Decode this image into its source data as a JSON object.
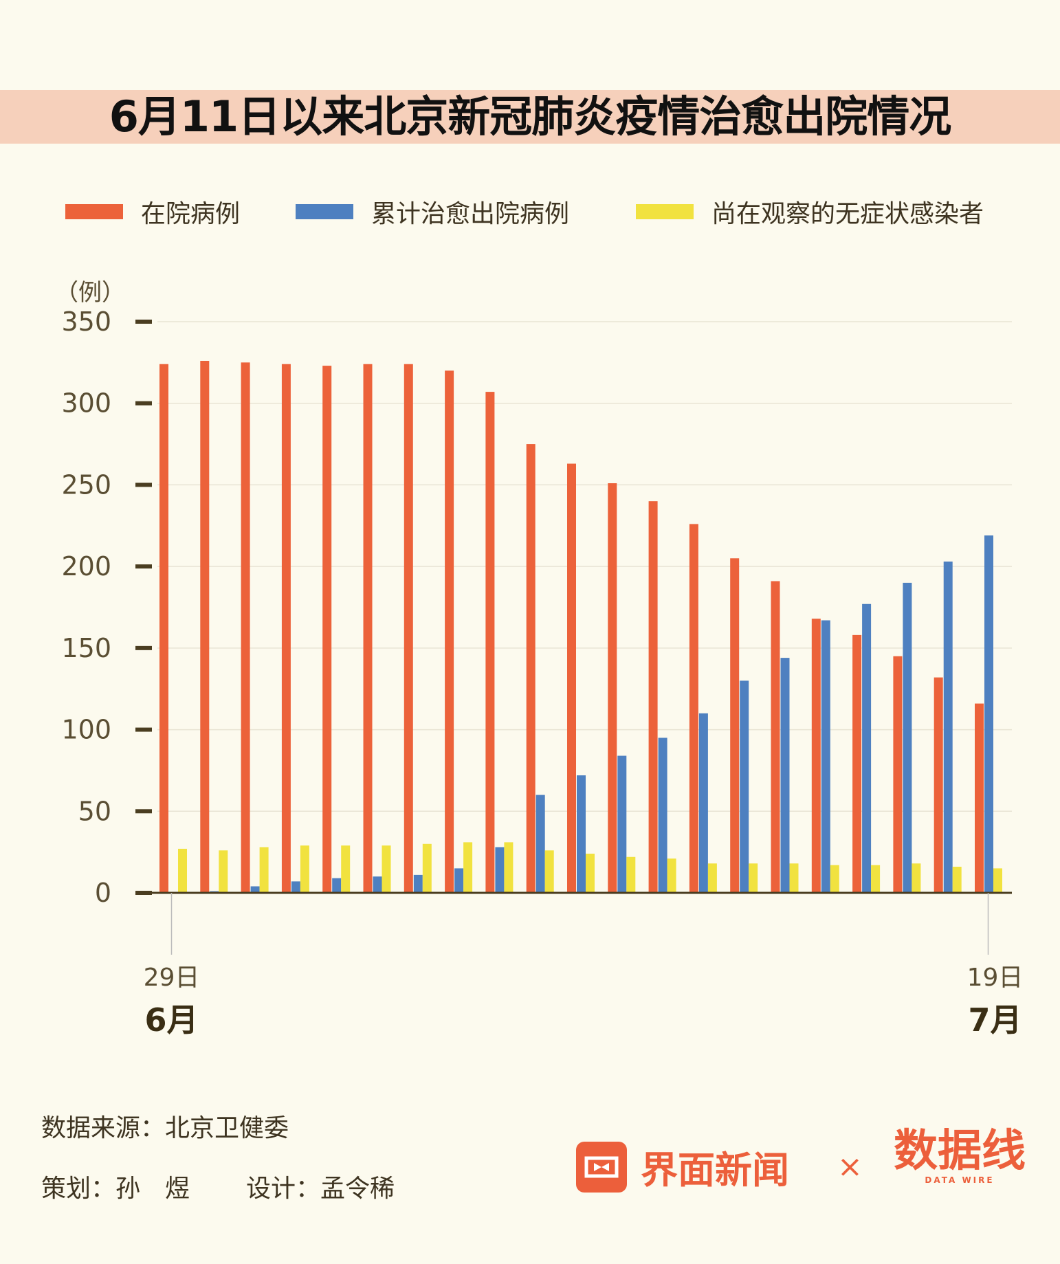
{
  "title": "6月11日以来北京新冠肺炎疫情治愈出院情况",
  "chart_data": {
    "type": "bar",
    "title": "6月11日以来北京新冠肺炎疫情治愈出院情况",
    "ylabel": "（例）",
    "ylim": [
      0,
      350
    ],
    "yticks": [
      "0",
      "50",
      "100",
      "150",
      "200",
      "250",
      "300",
      "350"
    ],
    "grid": true,
    "legend_position": "top",
    "categories": [
      "6月29日",
      "6月30日",
      "7月1日",
      "7月2日",
      "7月3日",
      "7月4日",
      "7月5日",
      "7月6日",
      "7月7日",
      "7月8日",
      "7月9日",
      "7月10日",
      "7月11日",
      "7月12日",
      "7月13日",
      "7月14日",
      "7月15日",
      "7月16日",
      "7月17日",
      "7月18日",
      "7月19日"
    ],
    "x_labels": {
      "start_day": "29日",
      "start_month": "6月",
      "end_day": "19日",
      "end_month": "7月"
    },
    "series": [
      {
        "name": "在院病例",
        "color": "#ec623a",
        "values": [
          324,
          326,
          325,
          324,
          323,
          324,
          324,
          320,
          307,
          275,
          263,
          251,
          240,
          226,
          205,
          191,
          168,
          158,
          145,
          132,
          116
        ]
      },
      {
        "name": "累计治愈出院病例",
        "color": "#4e80c0",
        "values": [
          0,
          1,
          4,
          7,
          9,
          10,
          11,
          15,
          28,
          60,
          72,
          84,
          95,
          110,
          130,
          144,
          167,
          177,
          190,
          203,
          219
        ]
      },
      {
        "name": "尚在观察的无症状感染者",
        "color": "#f1e23f",
        "values": [
          27,
          26,
          28,
          29,
          29,
          29,
          30,
          31,
          31,
          26,
          24,
          22,
          21,
          18,
          18,
          18,
          17,
          17,
          18,
          16,
          15
        ]
      }
    ]
  },
  "footer": {
    "source": "数据来源：北京卫健委",
    "planner": "策划：孙　煜",
    "designer": "设计：孟令稀",
    "brand": "界面新闻",
    "times": "×",
    "partner": "数据线",
    "partner_en": "DATA WIRE"
  }
}
